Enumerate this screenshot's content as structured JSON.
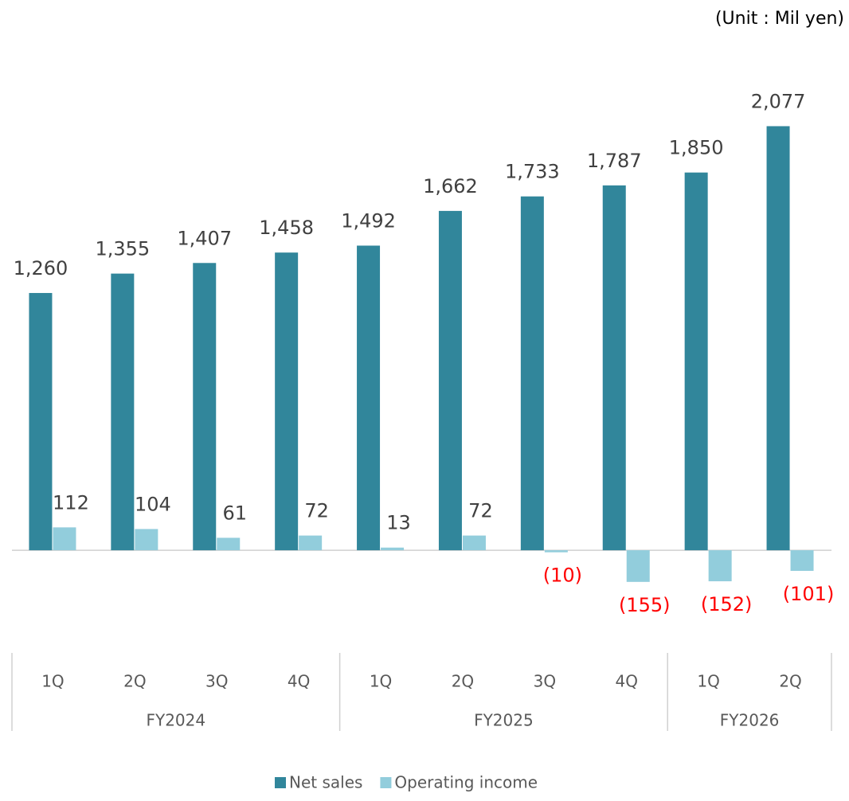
{
  "chart_data": {
    "type": "bar",
    "unit_label": "(Unit : Mil yen)",
    "category_groups": [
      {
        "label": "FY2024",
        "categories": [
          "1Q",
          "2Q",
          "3Q",
          "4Q"
        ]
      },
      {
        "label": "FY2025",
        "categories": [
          "1Q",
          "2Q",
          "3Q",
          "4Q"
        ]
      },
      {
        "label": "FY2026",
        "categories": [
          "1Q",
          "2Q"
        ]
      }
    ],
    "series": [
      {
        "name": "Net sales",
        "color": "#31869b",
        "values": [
          1260,
          1355,
          1407,
          1458,
          1492,
          1662,
          1733,
          1787,
          1850,
          2077
        ],
        "value_labels": [
          "1,260",
          "1,355",
          "1,407",
          "1,458",
          "1,492",
          "1,662",
          "1,733",
          "1,787",
          "1,850",
          "2,077"
        ]
      },
      {
        "name": "Operating income",
        "color": "#92cddc",
        "values": [
          112,
          104,
          61,
          72,
          13,
          72,
          -10,
          -155,
          -152,
          -101
        ],
        "value_labels": [
          "112",
          "104",
          "61",
          "72",
          "13",
          "72",
          "(10)",
          "(155)",
          "(152)",
          "(101)"
        ]
      }
    ],
    "negative_label_color": "#ff0000",
    "ylim": [
      -300,
      2500
    ],
    "legend": "bottom"
  }
}
